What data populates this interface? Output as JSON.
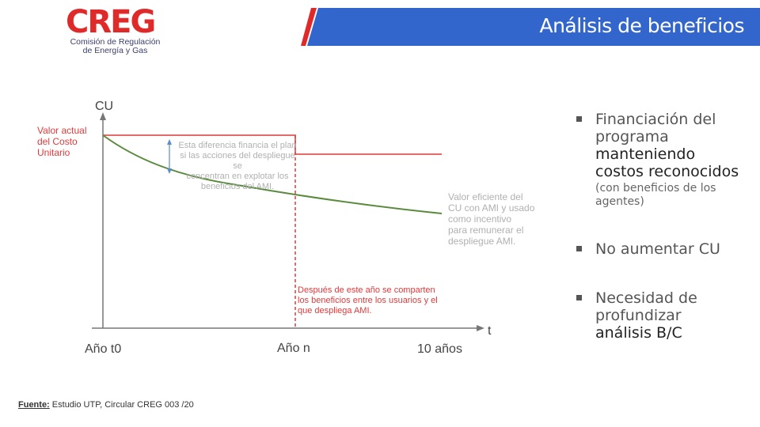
{
  "header": {
    "logo_text": "CREG",
    "logo_subtitle_line1": "Comisión de Regulación",
    "logo_subtitle_line2": "de Energía y Gas",
    "title": "Análisis de beneficios",
    "banner_color": "#3366cc"
  },
  "figure": {
    "y_axis_label": "CU",
    "x_axis_label": "t",
    "tick_labels": [
      "Año t0",
      "Año n",
      "10 años"
    ],
    "label_current_cu": [
      "Valor actual",
      "del Costo",
      "Unitario"
    ],
    "label_difference": [
      "Esta diferencia financia el plan",
      "si las acciones del despliegue se",
      "concentran en explotar los",
      "beneficios del AMI."
    ],
    "label_efficient_value": [
      "Valor eficiente del",
      "CU con AMI y usado",
      "como incentivo",
      "para remunerar el",
      "despliegue AMI."
    ],
    "label_after_year": [
      "Después de este año se comparten",
      "los beneficios entre los usuarios y el",
      "que despliega AMI."
    ],
    "colors": {
      "red": "#e03a3a",
      "green": "#5a8a3c",
      "axis": "#777777"
    }
  },
  "bullets": [
    {
      "line1": "Financiación del",
      "line2": "programa",
      "strong1": "manteniendo",
      "strong2": "costos reconocidos",
      "sub1": "(con beneficios de los",
      "sub2": "agentes)"
    },
    {
      "line1": "No aumentar CU"
    },
    {
      "line1": "Necesidad de",
      "line2": "profundizar",
      "strong1": "análisis B/C"
    }
  ],
  "footer": {
    "label": "Fuente:",
    "text": "Estudio UTP, Circular CREG 003 /20"
  }
}
